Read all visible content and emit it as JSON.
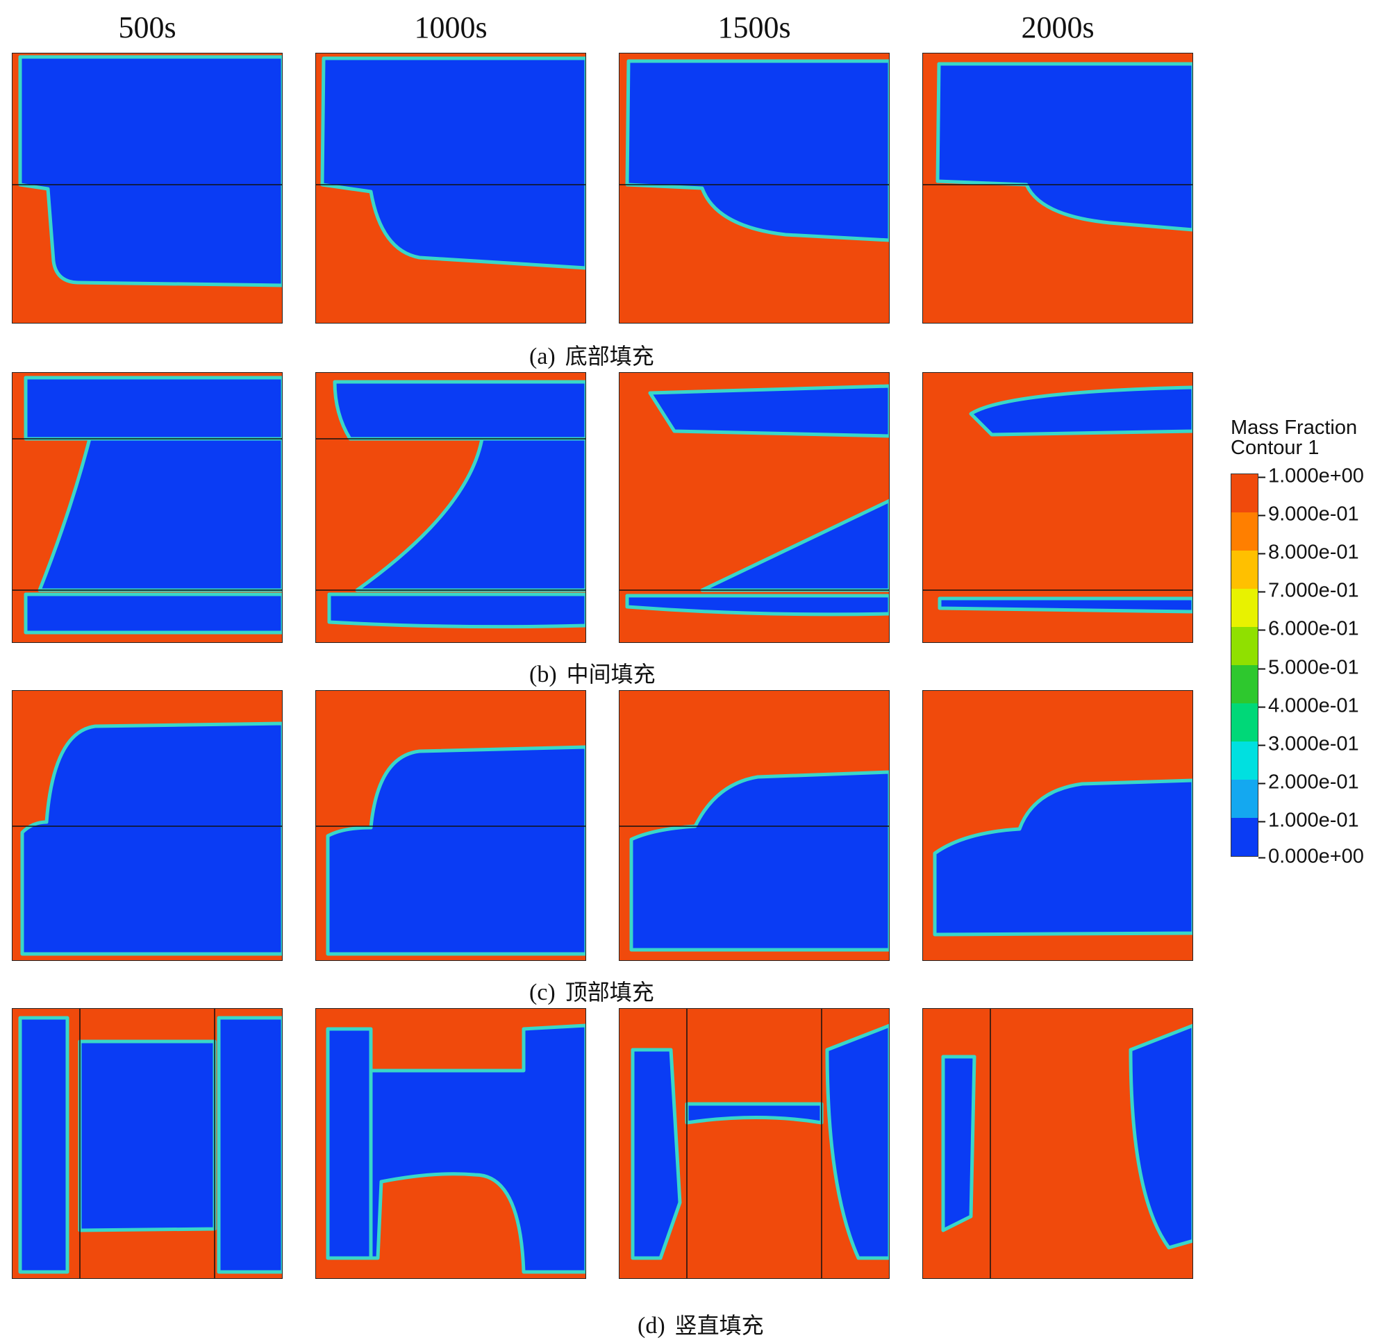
{
  "columns": [
    "500s",
    "1000s",
    "1500s",
    "2000s"
  ],
  "rows": [
    {
      "label": "(a)",
      "caption": "底部填充"
    },
    {
      "label": "(b)",
      "caption": "中间填充"
    },
    {
      "label": "(c)",
      "caption": "顶部填充"
    },
    {
      "label": "(d)",
      "caption": "竖直填充"
    }
  ],
  "legend": {
    "title_line1": "Mass Fraction",
    "title_line2": "Contour 1",
    "ticks": [
      "1.000e+00",
      "9.000e-01",
      "8.000e-01",
      "7.000e-01",
      "6.000e-01",
      "5.000e-01",
      "4.000e-01",
      "3.000e-01",
      "2.000e-01",
      "1.000e-01",
      "0.000e+00"
    ],
    "colors_top_to_bottom": [
      "#f04a0c",
      "#ff7f00",
      "#ffc000",
      "#e8f200",
      "#90e000",
      "#2ec82e",
      "#00d878",
      "#00e0e0",
      "#14a8f0",
      "#0a3cf4"
    ]
  },
  "colors": {
    "fluid_high": "#f04a0c",
    "fluid_low": "#0a3cf4"
  }
}
